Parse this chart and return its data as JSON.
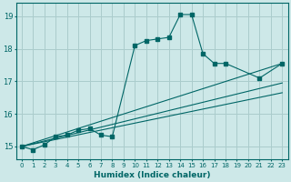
{
  "xlabel": "Humidex (Indice chaleur)",
  "bg_color": "#cde8e8",
  "grid_color": "#aacccc",
  "line_color": "#006666",
  "xlim": [
    -0.5,
    23.5
  ],
  "ylim": [
    14.6,
    19.4
  ],
  "yticks": [
    15,
    16,
    17,
    18,
    19
  ],
  "xticks": [
    0,
    1,
    2,
    3,
    4,
    5,
    6,
    7,
    8,
    9,
    10,
    11,
    12,
    13,
    14,
    15,
    16,
    17,
    18,
    19,
    20,
    21,
    22,
    23
  ],
  "jagged_x": [
    0,
    1,
    2,
    3,
    4,
    5,
    6,
    7,
    8,
    10,
    11,
    12,
    13,
    14,
    15,
    16,
    17,
    18,
    21,
    23
  ],
  "jagged_y": [
    15.0,
    14.9,
    15.05,
    15.3,
    15.35,
    15.5,
    15.55,
    15.35,
    15.3,
    18.1,
    18.25,
    18.3,
    18.35,
    19.05,
    19.05,
    17.85,
    17.55,
    17.55,
    17.1,
    17.55
  ],
  "line1_x": [
    0,
    23
  ],
  "line1_y": [
    15.0,
    17.55
  ],
  "line2_x": [
    0,
    23
  ],
  "line2_y": [
    15.0,
    16.95
  ],
  "line3_x": [
    0,
    23
  ],
  "line3_y": [
    15.0,
    16.65
  ]
}
